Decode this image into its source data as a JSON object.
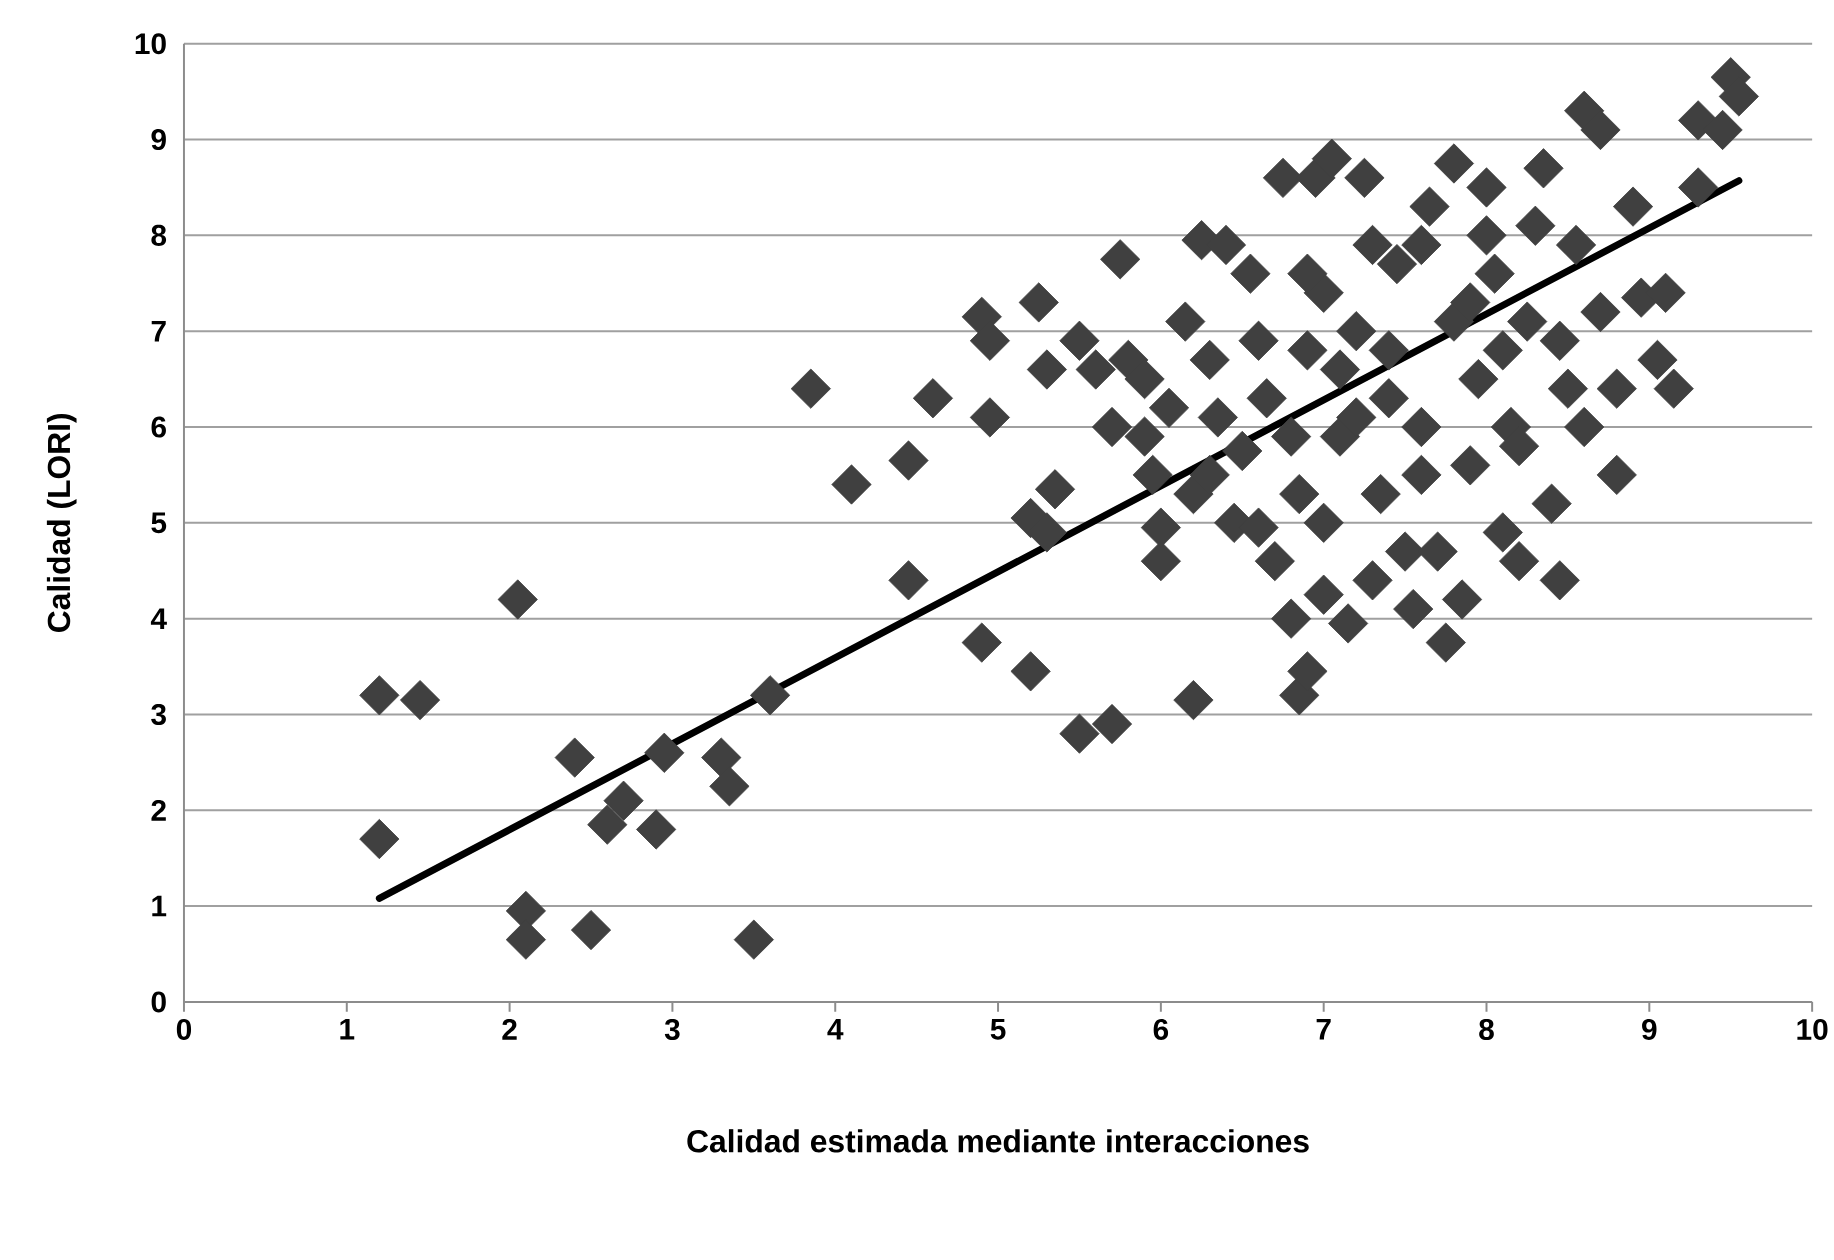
{
  "chart_data": {
    "type": "scatter",
    "xlabel": "Calidad estimada mediante interacciones",
    "ylabel": "Calidad  (LORI)",
    "xlim": [
      0,
      10
    ],
    "ylim": [
      0,
      10
    ],
    "xticks": [
      0,
      1,
      2,
      3,
      4,
      5,
      6,
      7,
      8,
      9,
      10
    ],
    "yticks": [
      0,
      1,
      2,
      3,
      4,
      5,
      6,
      7,
      8,
      9,
      10
    ],
    "grid": "y",
    "series": [
      {
        "marker": "diamond",
        "color": "#404040",
        "x": [
          1.2,
          1.45,
          1.2,
          2.05,
          2.1,
          2.1,
          2.5,
          3.5,
          2.4,
          2.6,
          2.7,
          2.9,
          2.95,
          3.3,
          3.35,
          3.6,
          3.85,
          4.1,
          4.45,
          4.45,
          4.6,
          4.9,
          4.9,
          4.95,
          4.95,
          5.2,
          5.25,
          5.2,
          5.3,
          5.35,
          5.3,
          5.5,
          5.5,
          5.6,
          5.7,
          5.7,
          5.75,
          5.8,
          5.9,
          5.95,
          6.0,
          6.0,
          6.05,
          6.15,
          6.2,
          6.2,
          6.25,
          6.3,
          6.35,
          6.4,
          6.45,
          6.5,
          6.55,
          6.6,
          6.65,
          6.7,
          6.75,
          6.8,
          6.85,
          6.9,
          6.85,
          6.9,
          6.95,
          7.0,
          7.0,
          7.05,
          7.1,
          7.15,
          7.2,
          7.25,
          7.3,
          7.35,
          7.4,
          7.45,
          7.5,
          7.55,
          7.6,
          7.65,
          7.7,
          7.75,
          7.8,
          7.8,
          7.85,
          7.9,
          7.95,
          8.0,
          8.05,
          8.1,
          8.15,
          8.2,
          8.25,
          8.35,
          8.4,
          8.45,
          8.5,
          8.55,
          8.6,
          8.6,
          8.7,
          8.7,
          8.8,
          8.8,
          8.9,
          8.95,
          9.05,
          9.1,
          9.15,
          9.3,
          9.3,
          9.45,
          9.5,
          9.55,
          7.3,
          7.6,
          6.9,
          7.4,
          7.9,
          8.1,
          6.6,
          6.3,
          7.0,
          7.6,
          8.2,
          5.9,
          6.8,
          7.2,
          8.45,
          8.0,
          8.3,
          7.1
        ],
        "values": [
          3.2,
          3.15,
          1.7,
          4.2,
          0.95,
          0.65,
          0.75,
          0.65,
          2.55,
          1.85,
          2.1,
          1.8,
          2.6,
          2.55,
          2.25,
          3.2,
          6.4,
          5.4,
          5.65,
          4.4,
          6.3,
          3.75,
          7.15,
          6.9,
          6.1,
          5.05,
          7.3,
          3.45,
          6.6,
          5.35,
          4.9,
          2.8,
          6.9,
          6.6,
          6.0,
          2.9,
          7.75,
          6.7,
          6.5,
          5.5,
          4.6,
          4.95,
          6.2,
          7.1,
          3.15,
          5.3,
          7.95,
          6.7,
          6.1,
          7.9,
          5.0,
          5.75,
          7.6,
          4.95,
          6.3,
          4.6,
          8.6,
          4.0,
          3.2,
          3.45,
          5.3,
          6.8,
          8.6,
          4.25,
          7.4,
          8.8,
          5.9,
          3.95,
          7.0,
          8.6,
          4.4,
          5.3,
          6.3,
          7.7,
          4.7,
          4.1,
          6.0,
          8.3,
          4.7,
          3.75,
          8.75,
          7.1,
          4.2,
          5.6,
          6.5,
          8.5,
          7.6,
          4.9,
          6.0,
          4.6,
          7.1,
          8.7,
          5.2,
          4.4,
          6.4,
          7.9,
          9.3,
          6.0,
          9.1,
          7.2,
          5.5,
          6.4,
          8.3,
          7.35,
          6.7,
          7.4,
          6.4,
          8.5,
          9.2,
          9.1,
          9.65,
          9.45,
          7.9,
          7.9,
          7.6,
          6.8,
          7.3,
          6.8,
          6.9,
          5.5,
          5.0,
          5.5,
          5.8,
          5.9,
          5.9,
          6.1,
          6.9,
          8.0,
          8.1,
          6.6
        ]
      },
      {
        "type": "line",
        "marker": "none",
        "color": "#000000",
        "x": [
          1.2,
          9.55
        ],
        "values": [
          1.08,
          8.57
        ]
      }
    ]
  }
}
